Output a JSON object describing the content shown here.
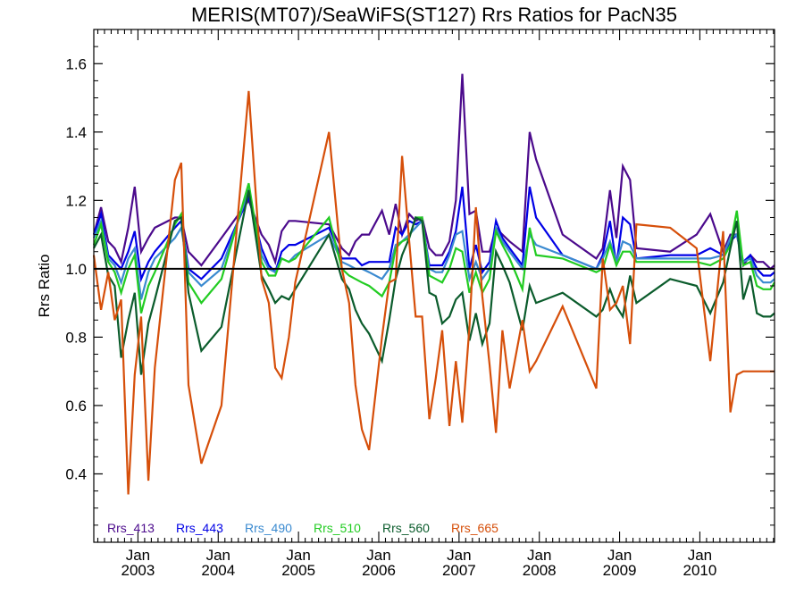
{
  "chart_data": {
    "type": "line",
    "title": "MERIS(MT07)/SeaWiFS(ST127)  Rrs Ratios for PacN35",
    "ylabel": "Rrs Ratio",
    "xlabel": "",
    "xlim": [
      2002.45,
      2010.93
    ],
    "ylim": [
      0.2,
      1.7
    ],
    "y_ticks": [
      0.4,
      0.6,
      0.8,
      1.0,
      1.2,
      1.4,
      1.6
    ],
    "y_tick_labels": [
      "0.4",
      "0.6",
      "0.8",
      "1.0",
      "1.2",
      "1.4",
      "1.6"
    ],
    "x_major_ticks": [
      {
        "x": 2003.0,
        "month": "Jan",
        "year": "2003"
      },
      {
        "x": 2004.0,
        "month": "Jan",
        "year": "2004"
      },
      {
        "x": 2005.0,
        "month": "Jan",
        "year": "2005"
      },
      {
        "x": 2006.0,
        "month": "Jan",
        "year": "2006"
      },
      {
        "x": 2007.0,
        "month": "Jan",
        "year": "2007"
      },
      {
        "x": 2008.0,
        "month": "Jan",
        "year": "2008"
      },
      {
        "x": 2009.0,
        "month": "Jan",
        "year": "2009"
      },
      {
        "x": 2010.0,
        "month": "Jan",
        "year": "2010"
      }
    ],
    "reference_line": 1.0,
    "grid": false,
    "legend_position": "bottom-left",
    "x": [
      2002.45,
      2002.54,
      2002.63,
      2002.71,
      2002.79,
      2002.88,
      2002.96,
      2003.04,
      2003.13,
      2003.21,
      2003.46,
      2003.54,
      2003.63,
      2003.79,
      2004.04,
      2004.38,
      2004.54,
      2004.63,
      2004.71,
      2004.79,
      2004.88,
      2004.96,
      2005.38,
      2005.54,
      2005.63,
      2005.71,
      2005.79,
      2005.88,
      2006.04,
      2006.13,
      2006.21,
      2006.29,
      2006.38,
      2006.46,
      2006.54,
      2006.63,
      2006.71,
      2006.79,
      2006.88,
      2006.96,
      2007.04,
      2007.13,
      2007.21,
      2007.29,
      2007.38,
      2007.46,
      2007.54,
      2007.63,
      2007.79,
      2007.88,
      2007.96,
      2008.29,
      2008.71,
      2008.79,
      2008.88,
      2008.96,
      2009.04,
      2009.13,
      2009.21,
      2009.63,
      2009.96,
      2010.13,
      2010.29,
      2010.38,
      2010.46,
      2010.54,
      2010.63,
      2010.71,
      2010.79,
      2010.88,
      2010.93
    ],
    "series": [
      {
        "name": "Rrs_413",
        "color": "#4b0a8c",
        "values": [
          1.1,
          1.18,
          1.08,
          1.06,
          1.02,
          1.12,
          1.24,
          1.05,
          1.09,
          1.12,
          1.15,
          1.15,
          1.05,
          1.01,
          1.09,
          1.2,
          1.1,
          1.07,
          1.02,
          1.11,
          1.14,
          1.14,
          1.13,
          1.06,
          1.04,
          1.08,
          1.1,
          1.1,
          1.17,
          1.1,
          1.19,
          1.1,
          1.16,
          1.14,
          1.15,
          1.06,
          1.04,
          1.04,
          1.08,
          1.2,
          1.57,
          1.16,
          1.17,
          1.05,
          1.05,
          1.12,
          1.1,
          1.08,
          1.05,
          1.4,
          1.32,
          1.1,
          1.03,
          1.06,
          1.23,
          1.09,
          1.3,
          1.26,
          1.06,
          1.05,
          1.1,
          1.16,
          1.05,
          1.1,
          1.1,
          1.01,
          1.04,
          1.02,
          1.02,
          1.0,
          1.01
        ]
      },
      {
        "name": "Rrs_443",
        "color": "#0000e6",
        "values": [
          1.1,
          1.16,
          1.04,
          1.02,
          1.0,
          1.05,
          1.11,
          0.97,
          1.02,
          1.05,
          1.12,
          1.14,
          1.0,
          0.97,
          1.03,
          1.21,
          1.06,
          1.01,
          0.99,
          1.05,
          1.07,
          1.07,
          1.12,
          1.03,
          1.03,
          1.03,
          1.01,
          1.02,
          1.02,
          1.02,
          1.12,
          1.1,
          1.14,
          1.13,
          1.14,
          1.01,
          1.01,
          1.01,
          1.05,
          1.11,
          1.24,
          1.0,
          1.07,
          0.99,
          1.02,
          1.14,
          1.09,
          1.06,
          1.01,
          1.24,
          1.15,
          1.04,
          1.0,
          1.04,
          1.14,
          1.01,
          1.15,
          1.13,
          1.03,
          1.04,
          1.04,
          1.06,
          1.04,
          1.08,
          1.1,
          1.02,
          1.04,
          1.0,
          0.98,
          0.98,
          0.99
        ]
      },
      {
        "name": "Rrs_490",
        "color": "#3a8ad0",
        "values": [
          1.09,
          1.14,
          1.03,
          1.01,
          0.96,
          1.03,
          1.06,
          0.91,
          0.99,
          1.03,
          1.09,
          1.12,
          0.99,
          0.95,
          1.0,
          1.23,
          1.04,
          1.0,
          0.99,
          1.03,
          1.02,
          1.04,
          1.1,
          1.02,
          1.01,
          1.0,
          1.0,
          0.99,
          0.97,
          1.0,
          1.07,
          1.08,
          1.1,
          1.12,
          1.14,
          1.0,
          0.99,
          0.99,
          1.04,
          1.1,
          1.11,
          0.97,
          1.02,
          0.97,
          1.0,
          1.12,
          1.08,
          1.05,
          1.0,
          1.1,
          1.07,
          1.04,
          1.0,
          1.03,
          1.08,
          1.02,
          1.08,
          1.07,
          1.03,
          1.03,
          1.03,
          1.03,
          1.04,
          1.09,
          1.1,
          1.02,
          1.03,
          0.98,
          0.96,
          0.96,
          0.97
        ]
      },
      {
        "name": "Rrs_510",
        "color": "#22cc22",
        "values": [
          1.07,
          1.13,
          1.02,
          0.99,
          0.93,
          1.0,
          1.04,
          0.87,
          0.95,
          0.99,
          1.13,
          1.16,
          0.96,
          0.9,
          0.97,
          1.25,
          1.02,
          0.98,
          0.98,
          1.03,
          1.02,
          1.03,
          1.15,
          1.0,
          0.98,
          0.97,
          0.96,
          0.95,
          0.92,
          0.96,
          1.06,
          1.08,
          1.09,
          1.15,
          1.15,
          0.98,
          0.97,
          0.96,
          1.0,
          1.06,
          1.05,
          0.93,
          0.99,
          0.93,
          0.97,
          1.11,
          1.07,
          1.03,
          0.94,
          1.12,
          1.04,
          1.03,
          0.99,
          1.0,
          1.07,
          1.01,
          1.05,
          1.05,
          1.02,
          1.02,
          1.02,
          1.01,
          1.03,
          1.07,
          1.17,
          1.01,
          1.02,
          0.95,
          0.94,
          0.94,
          0.96
        ]
      },
      {
        "name": "Rrs_560",
        "color": "#0b5c2c",
        "values": [
          1.06,
          1.1,
          0.98,
          0.95,
          0.74,
          0.85,
          0.93,
          0.69,
          0.84,
          0.91,
          1.14,
          1.15,
          0.93,
          0.76,
          0.83,
          1.23,
          0.98,
          0.94,
          0.9,
          0.92,
          0.91,
          0.94,
          1.1,
          0.97,
          0.94,
          0.88,
          0.84,
          0.81,
          0.73,
          0.85,
          0.97,
          1.04,
          1.09,
          1.15,
          1.14,
          0.93,
          0.92,
          0.84,
          0.86,
          0.91,
          0.93,
          0.79,
          0.87,
          0.78,
          0.84,
          1.05,
          1.01,
          0.96,
          0.82,
          0.95,
          0.9,
          0.93,
          0.86,
          0.88,
          0.94,
          0.89,
          0.86,
          0.98,
          0.9,
          0.97,
          0.95,
          0.87,
          0.96,
          1.06,
          1.14,
          0.91,
          0.98,
          0.87,
          0.86,
          0.86,
          0.87
        ]
      },
      {
        "name": "Rrs_665",
        "color": "#d64f0a",
        "values": [
          1.04,
          0.88,
          0.99,
          0.85,
          0.91,
          0.34,
          0.69,
          0.86,
          0.38,
          0.71,
          1.26,
          1.31,
          0.66,
          0.43,
          0.6,
          1.52,
          0.97,
          0.9,
          0.71,
          0.68,
          0.8,
          0.96,
          1.4,
          1.0,
          0.9,
          0.66,
          0.53,
          0.47,
          0.8,
          0.96,
          0.97,
          1.33,
          1.08,
          0.86,
          0.86,
          0.56,
          0.68,
          0.82,
          0.54,
          0.73,
          0.55,
          0.83,
          1.18,
          0.92,
          0.72,
          0.52,
          0.82,
          0.65,
          0.85,
          0.7,
          0.73,
          0.89,
          0.65,
          1.03,
          0.88,
          0.9,
          0.95,
          0.78,
          1.13,
          1.12,
          1.06,
          0.73,
          1.11,
          0.58,
          0.69,
          0.7,
          0.7,
          0.7,
          0.7,
          0.7,
          0.7
        ]
      }
    ]
  }
}
